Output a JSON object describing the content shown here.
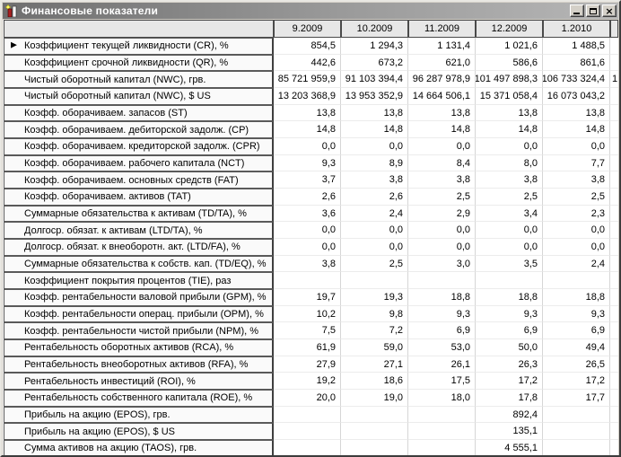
{
  "window": {
    "title": "Финансовые показатели",
    "controls": {
      "minimize": "minimize",
      "maximize": "maximize",
      "close": "close",
      "close_glyph": "×"
    }
  },
  "colors": {
    "titlebar_gradient_start": "#6f6f6f",
    "titlebar_gradient_end": "#b6b6b6",
    "chrome": "#d4d0c8",
    "header_bg": "#e7e7e7",
    "grid_bg": "#ffffff",
    "text": "#000000"
  },
  "grid": {
    "corner_header": "",
    "columns": [
      "9.2009",
      "10.2009",
      "11.2009",
      "12.2009",
      "1.2010"
    ],
    "selected_row_index": 0,
    "selector_glyph": "▶",
    "rows": [
      {
        "label": "Коэффициент текущей ликвидности (CR), %",
        "values": [
          "854,5",
          "1 294,3",
          "1 131,4",
          "1 021,6",
          "1 488,5"
        ],
        "extra": ""
      },
      {
        "label": "Коэффициент срочной ликвидности (QR), %",
        "values": [
          "442,6",
          "673,2",
          "621,0",
          "586,6",
          "861,6"
        ],
        "extra": ""
      },
      {
        "label": "Чистый оборотный капитал (NWC), грв.",
        "values": [
          "85 721 959,9",
          "91 103 394,4",
          "96 287 978,9",
          "101 497 898,3",
          "106 733 324,4"
        ],
        "extra": "1"
      },
      {
        "label": "Чистый оборотный капитал (NWC), $ US",
        "values": [
          "13 203 368,9",
          "13 953 352,9",
          "14 664 506,1",
          "15 371 058,4",
          "16 073 043,2"
        ],
        "extra": ""
      },
      {
        "label": "Коэфф. оборачиваем. запасов (ST)",
        "values": [
          "13,8",
          "13,8",
          "13,8",
          "13,8",
          "13,8"
        ],
        "extra": ""
      },
      {
        "label": "Коэфф. оборачиваем. дебиторской задолж. (CP)",
        "values": [
          "14,8",
          "14,8",
          "14,8",
          "14,8",
          "14,8"
        ],
        "extra": ""
      },
      {
        "label": "Коэфф. оборачиваем. кредиторской задолж. (CPR)",
        "values": [
          "0,0",
          "0,0",
          "0,0",
          "0,0",
          "0,0"
        ],
        "extra": ""
      },
      {
        "label": "Коэфф. оборачиваем. рабочего капитала (NCT)",
        "values": [
          "9,3",
          "8,9",
          "8,4",
          "8,0",
          "7,7"
        ],
        "extra": ""
      },
      {
        "label": "Коэфф. оборачиваем. основных средств (FAT)",
        "values": [
          "3,7",
          "3,8",
          "3,8",
          "3,8",
          "3,8"
        ],
        "extra": ""
      },
      {
        "label": "Коэфф. оборачиваем. активов (TAT)",
        "values": [
          "2,6",
          "2,6",
          "2,5",
          "2,5",
          "2,5"
        ],
        "extra": ""
      },
      {
        "label": "Суммарные обязательства к активам (TD/TA), %",
        "values": [
          "3,6",
          "2,4",
          "2,9",
          "3,4",
          "2,3"
        ],
        "extra": ""
      },
      {
        "label": "Долгоср. обязат. к активам (LTD/TA), %",
        "values": [
          "0,0",
          "0,0",
          "0,0",
          "0,0",
          "0,0"
        ],
        "extra": ""
      },
      {
        "label": "Долгоср. обязат. к внеоборотн. акт. (LTD/FA), %",
        "values": [
          "0,0",
          "0,0",
          "0,0",
          "0,0",
          "0,0"
        ],
        "extra": ""
      },
      {
        "label": "Суммарные обязательства к собств. кап. (TD/EQ), %",
        "values": [
          "3,8",
          "2,5",
          "3,0",
          "3,5",
          "2,4"
        ],
        "extra": ""
      },
      {
        "label": "Коэффициент покрытия процентов (TIE), раз",
        "values": [
          "",
          "",
          "",
          "",
          ""
        ],
        "extra": ""
      },
      {
        "label": "Коэфф. рентабельности валовой прибыли (GPM), %",
        "values": [
          "19,7",
          "19,3",
          "18,8",
          "18,8",
          "18,8"
        ],
        "extra": ""
      },
      {
        "label": "Коэфф. рентабельности операц. прибыли (OPM), %",
        "values": [
          "10,2",
          "9,8",
          "9,3",
          "9,3",
          "9,3"
        ],
        "extra": ""
      },
      {
        "label": "Коэфф. рентабельности чистой прибыли (NPM), %",
        "values": [
          "7,5",
          "7,2",
          "6,9",
          "6,9",
          "6,9"
        ],
        "extra": ""
      },
      {
        "label": "Рентабельность оборотных активов (RCA), %",
        "values": [
          "61,9",
          "59,0",
          "53,0",
          "50,0",
          "49,4"
        ],
        "extra": ""
      },
      {
        "label": "Рентабельность внеоборотных активов (RFA), %",
        "values": [
          "27,9",
          "27,1",
          "26,1",
          "26,3",
          "26,5"
        ],
        "extra": ""
      },
      {
        "label": "Рентабельность инвестиций (ROI), %",
        "values": [
          "19,2",
          "18,6",
          "17,5",
          "17,2",
          "17,2"
        ],
        "extra": ""
      },
      {
        "label": "Рентабельность собственного капитала (ROE), %",
        "values": [
          "20,0",
          "19,0",
          "18,0",
          "17,8",
          "17,7"
        ],
        "extra": ""
      },
      {
        "label": "Прибыль на акцию (EPOS), грв.",
        "values": [
          "",
          "",
          "",
          "892,4",
          ""
        ],
        "extra": ""
      },
      {
        "label": "Прибыль на акцию (EPOS), $ US",
        "values": [
          "",
          "",
          "",
          "135,1",
          ""
        ],
        "extra": ""
      },
      {
        "label": "Сумма активов на акцию (TAOS), грв.",
        "values": [
          "",
          "",
          "",
          "4 555,1",
          ""
        ],
        "extra": ""
      }
    ]
  }
}
